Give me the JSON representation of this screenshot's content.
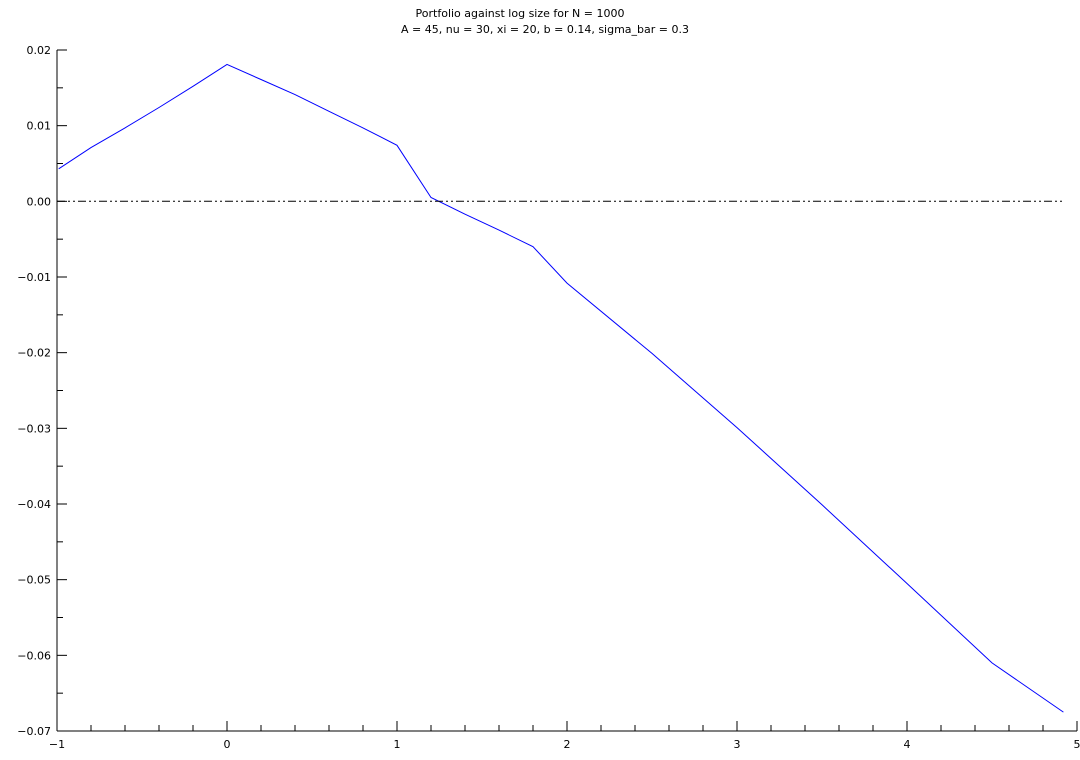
{
  "chart_data": {
    "type": "line",
    "title": "Portfolio against log size for N = 1000",
    "subtitle": "A = 45, nu = 30, xi = 20, b = 0.14, sigma_bar = 0.3",
    "xlabel": "",
    "ylabel": "",
    "xlim": [
      -1,
      5
    ],
    "ylim": [
      -0.07,
      0.02
    ],
    "grid": false,
    "x_tick_labels": [
      "−1",
      "0",
      "1",
      "2",
      "3",
      "4",
      "5"
    ],
    "y_tick_labels": [
      "0.02",
      "0.01",
      "0.00",
      "−0.01",
      "−0.02",
      "−0.03",
      "−0.04",
      "−0.05",
      "−0.06",
      "−0.07"
    ],
    "series": [
      {
        "color": "#0000ff",
        "style": "solid",
        "x": [
          -0.99,
          -0.8,
          -0.6,
          -0.4,
          -0.2,
          0.0,
          0.2,
          0.4,
          0.6,
          0.8,
          1.0,
          1.2,
          1.4,
          1.6,
          1.8,
          2.0,
          2.5,
          3.0,
          3.5,
          4.0,
          4.5,
          4.92
        ],
        "y": [
          0.0043,
          0.0071,
          0.0097,
          0.0124,
          0.0152,
          0.0181,
          0.0161,
          0.0141,
          0.0119,
          0.0097,
          0.0074,
          0.0005,
          -0.0017,
          -0.0038,
          -0.006,
          -0.0108,
          -0.0201,
          -0.0299,
          -0.0401,
          -0.0505,
          -0.061,
          -0.0675
        ]
      },
      {
        "color": "#000000",
        "style": "dash-dot-dot",
        "x": [
          -1,
          4.92
        ],
        "y": [
          0.0,
          0.0
        ]
      }
    ]
  }
}
